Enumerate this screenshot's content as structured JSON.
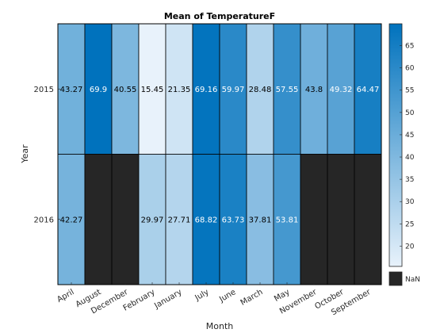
{
  "chart_data": {
    "type": "heatmap",
    "title": "Mean of TemperatureF",
    "xlabel": "Month",
    "ylabel": "Year",
    "x_categories": [
      "April",
      "August",
      "December",
      "February",
      "January",
      "July",
      "June",
      "March",
      "May",
      "November",
      "October",
      "September"
    ],
    "y_categories": [
      "2015",
      "2016"
    ],
    "values": [
      [
        43.27,
        69.9,
        40.55,
        15.45,
        21.35,
        69.16,
        59.97,
        28.48,
        57.55,
        43.8,
        49.32,
        64.47
      ],
      [
        42.27,
        null,
        null,
        29.97,
        27.71,
        68.82,
        63.73,
        37.81,
        53.81,
        null,
        null,
        null
      ]
    ],
    "value_labels": [
      [
        "43.27",
        "69.9",
        "40.55",
        "15.45",
        "21.35",
        "69.16",
        "59.97",
        "28.48",
        "57.55",
        "43.8",
        "49.32",
        "64.47"
      ],
      [
        "42.27",
        "",
        "",
        "29.97",
        "27.71",
        "68.82",
        "63.73",
        "37.81",
        "53.81",
        "",
        "",
        ""
      ]
    ],
    "colorbar": {
      "ticks": [
        "20",
        "25",
        "30",
        "35",
        "40",
        "45",
        "50",
        "55",
        "60",
        "65"
      ],
      "range": [
        15.45,
        69.9
      ],
      "colors": {
        "low": "#e8f2fb",
        "high": "#0072bd"
      },
      "nan_label": "NaN",
      "nan_color": "#262626"
    }
  }
}
